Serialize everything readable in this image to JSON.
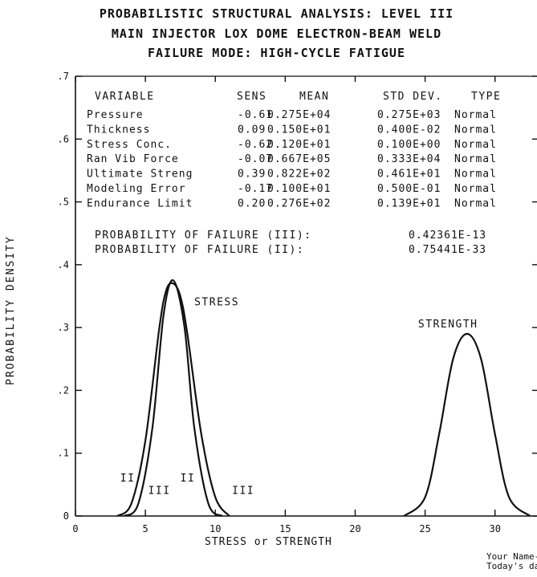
{
  "title_lines": [
    "PROBABILISTIC STRUCTURAL ANALYSIS: LEVEL III",
    "MAIN INJECTOR LOX DOME ELECTRON-BEAM WELD",
    "FAILURE MODE: HIGH-CYCLE FATIGUE"
  ],
  "table": {
    "headers": [
      "VARIABLE",
      "SENS",
      "MEAN",
      "STD DEV.",
      "TYPE"
    ],
    "rows": [
      [
        "Pressure",
        "-0.61",
        "0.275E+04",
        "0.275E+03",
        "Normal"
      ],
      [
        "Thickness",
        "0.09",
        "0.150E+01",
        "0.400E-02",
        "Normal"
      ],
      [
        "Stress Conc.",
        "-0.62",
        "0.120E+01",
        "0.100E+00",
        "Normal"
      ],
      [
        "Ran Vib Force",
        "-0.07",
        "0.667E+05",
        "0.333E+04",
        "Normal"
      ],
      [
        "Ultimate Streng",
        "0.39",
        "0.822E+02",
        "0.461E+01",
        "Normal"
      ],
      [
        "Modeling Error",
        "-0.17",
        "0.100E+01",
        "0.500E-01",
        "Normal"
      ],
      [
        "Endurance Limit",
        "0.20",
        "0.276E+02",
        "0.139E+01",
        "Normal"
      ]
    ]
  },
  "probabilities": [
    {
      "label": "PROBABILITY OF FAILURE (III):",
      "value": "0.42361E-13"
    },
    {
      "label": "PROBABILITY OF FAILURE (II):",
      "value": "0.75441E-33"
    }
  ],
  "footer": [
    "Your Name-",
    "Today's date"
  ],
  "chart_data": {
    "type": "line",
    "title": "PROBABILISTIC STRUCTURAL ANALYSIS: LEVEL III",
    "xlabel": "STRESS or STRENGTH",
    "ylabel": "PROBABILITY DENSITY",
    "xlim": [
      0,
      33
    ],
    "ylim": [
      0,
      0.7
    ],
    "x_ticks": [
      0,
      5,
      10,
      15,
      20,
      25,
      30
    ],
    "x_tick_labels": [
      "0",
      "5",
      "10",
      "15",
      "20",
      "25",
      "30"
    ],
    "y_ticks": [
      0,
      0.1,
      0.2,
      0.3,
      0.4,
      0.5,
      0.6,
      0.7
    ],
    "y_tick_labels": [
      "0",
      ".1",
      ".2",
      ".3",
      ".4",
      ".5",
      ".6",
      ".7"
    ],
    "grid": false,
    "series": [
      {
        "name": "STRESS",
        "x": [
          3.0,
          4.0,
          5.0,
          6.0,
          6.5,
          7.0,
          7.5,
          8.0,
          9.0,
          10.0,
          11.0
        ],
        "y": [
          0.0,
          0.02,
          0.12,
          0.3,
          0.36,
          0.37,
          0.35,
          0.29,
          0.13,
          0.03,
          0.0
        ]
      },
      {
        "name": "",
        "x": [
          3.5,
          4.5,
          5.5,
          6.3,
          7.0,
          7.8,
          8.5,
          9.5,
          10.5
        ],
        "y": [
          0.0,
          0.02,
          0.14,
          0.32,
          0.375,
          0.3,
          0.14,
          0.02,
          0.0
        ]
      },
      {
        "name": "STRENGTH",
        "x": [
          23.5,
          25.0,
          26.0,
          27.0,
          28.0,
          29.0,
          30.0,
          31.0,
          32.5
        ],
        "y": [
          0.0,
          0.03,
          0.13,
          0.25,
          0.29,
          0.25,
          0.13,
          0.03,
          0.0
        ]
      }
    ],
    "annotations": [
      {
        "text": "STRESS",
        "x": 8.5,
        "y": 0.335
      },
      {
        "text": "STRENGTH",
        "x": 24.5,
        "y": 0.3
      },
      {
        "text": "II",
        "x": 3.2,
        "y": 0.055
      },
      {
        "text": "III",
        "x": 5.2,
        "y": 0.035
      },
      {
        "text": "II",
        "x": 7.5,
        "y": 0.055
      },
      {
        "text": "III",
        "x": 11.2,
        "y": 0.035
      }
    ]
  }
}
